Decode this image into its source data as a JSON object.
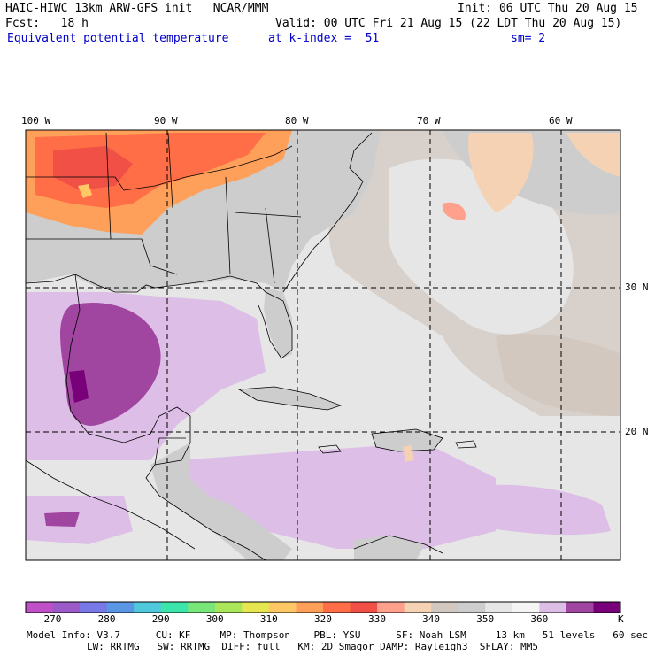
{
  "header": {
    "model": "HAIC-HIWC 13km ARW-GFS init   NCAR/MMM",
    "init": "Init: 06 UTC Thu 20 Aug 15",
    "fcst": "Fcst:   18 h",
    "valid": "Valid: 00 UTC Fri 21 Aug 15 (22 LDT Thu 20 Aug 15)",
    "field": "Equivalent potential temperature",
    "level": "at k-index =  51",
    "smooth": "sm= 2"
  },
  "map": {
    "lon_labels": [
      "100 W",
      "90 W",
      "80 W",
      "70 W",
      "60 W"
    ],
    "lat_labels": [
      "30 N",
      "20 N"
    ]
  },
  "colorbar": {
    "unit": "K",
    "tick_labels": [
      "270",
      "280",
      "290",
      "300",
      "310",
      "320",
      "330",
      "340",
      "350",
      "360"
    ],
    "colors": [
      "#c050c8",
      "#9a5ac8",
      "#7878e6",
      "#5a96e6",
      "#50c8dc",
      "#3ce6aa",
      "#78e678",
      "#aae65a",
      "#e6e650",
      "#ffc864",
      "#ffa05a",
      "#ff6e46",
      "#f05046",
      "#ffa08c",
      "#f5d2b4",
      "#d2c8c0",
      "#cdcdcd",
      "#e6e6e6",
      "#f5f5f5",
      "#dcbee6",
      "#a046a0",
      "#780078"
    ],
    "field_colors": {
      "ocean_light": "#e6e6e6",
      "land_gray": "#cdcdcd",
      "lavender": "#dcbee6",
      "purple": "#a046a0",
      "dark_purple": "#780078",
      "tan": "#d2c8c0",
      "peach": "#f5d2b4",
      "salmon": "#ffa08c",
      "orange": "#ffa05a",
      "red_orange": "#ff6e46"
    }
  },
  "footer": {
    "line1": "Model Info: V3.7      CU: KF     MP: Thompson    PBL: YSU      SF: Noah LSM     13 km   51 levels   60 sec",
    "line2": "LW: RRTMG   SW: RRTMG  DIFF: full   KM: 2D Smagor DAMP: Rayleigh3  SFLAY: MM5"
  }
}
